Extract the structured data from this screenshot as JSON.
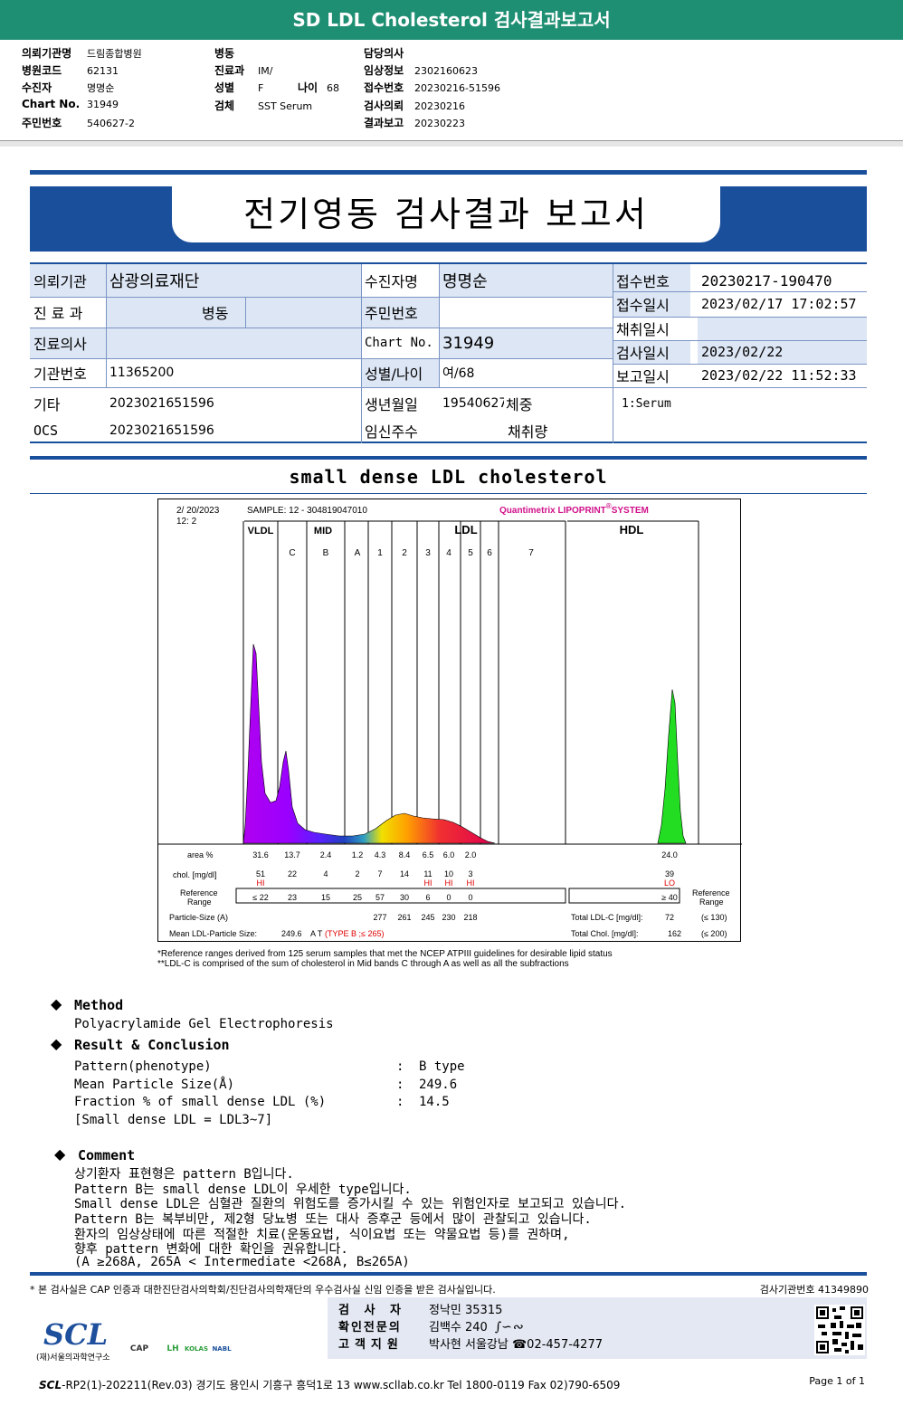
{
  "header": {
    "title": "SD LDL Cholesterol 검사결과보고서",
    "fields": [
      {
        "label": "의뢰기관명",
        "value": "드림종합병원"
      },
      {
        "label": "병원코드",
        "value": "62131"
      },
      {
        "label": "수진자",
        "value": "명명순"
      },
      {
        "label": "Chart No.",
        "value": "31949"
      },
      {
        "label": "주민번호",
        "value": "540627-2"
      },
      {
        "label": "병동",
        "value": ""
      },
      {
        "label": "진료과",
        "value": "IM/"
      },
      {
        "label": "성별",
        "value": "F"
      },
      {
        "label": "나이",
        "value": "68"
      },
      {
        "label": "검체",
        "value": "SST Serum"
      },
      {
        "label": "담당의사",
        "value": ""
      },
      {
        "label": "임상정보",
        "value": "2302160623"
      },
      {
        "label": "접수번호",
        "value": "20230216-51596"
      },
      {
        "label": "검사의뢰",
        "value": "20230216"
      },
      {
        "label": "결과보고",
        "value": "20230223"
      }
    ]
  },
  "report": {
    "title": "전기영동 검사결과 보고서",
    "table": {
      "institution_label": "의뢰기관",
      "institution": "삼광의료재단",
      "patient_label": "수진자명",
      "patient": "명명순",
      "receipt_no_label": "접수번호",
      "receipt_no": "20230217-190470",
      "dept_label": "진 료 과",
      "ward": "병동",
      "rrn_label": "주민번호",
      "rrn": "",
      "receipt_time_label": "접수일시",
      "receipt_time": "2023/02/17 17:02:57",
      "collect_time_label": "채취일시",
      "collect_time": "",
      "doctor_label": "진료의사",
      "doctor": "",
      "chart_label": "Chart No.",
      "chart": "31949",
      "test_date_label": "검사일시",
      "test_date": "2023/02/22",
      "inst_code_label": "기관번호",
      "inst_code": "11365200",
      "sex_age_label": "성별/나이",
      "sex_age": "여/68",
      "report_time_label": "보고일시",
      "report_time": "2023/02/22 11:52:33",
      "etc_label": "기타",
      "etc": "2023021651596",
      "dob_label": "생년월일",
      "dob": "19540627",
      "weight_label": "체중",
      "specimen": "1:Serum",
      "ocs_label": "OCS",
      "ocs": "2023021651596",
      "preg_label": "임신주수",
      "volume_label": "채취량"
    }
  },
  "section_title": "small dense LDL cholesterol",
  "chart_data": {
    "type": "area",
    "date_line1": "2/ 20/2023",
    "date_line2": "12:  2",
    "sample": "SAMPLE:    12 - 304819047010",
    "system": "Quantimetrix LIPOPRINT",
    "system_sup": "®",
    "system_tail": "SYSTEM",
    "groups": [
      "VLDL",
      "MID",
      "LDL",
      "HDL"
    ],
    "bands": [
      "C",
      "B",
      "A",
      "1",
      "2",
      "3",
      "4",
      "5",
      "6",
      "7"
    ],
    "row_labels": {
      "area": "area %",
      "chol": "chol. [mg/dl]",
      "ref": "Reference",
      "ref2": "Range",
      "particle": "Particle-Size (A)",
      "mean": "Mean LDL-Particle Size:"
    },
    "area_pct": [
      "31.6",
      "13.7",
      "2.4",
      "1.2",
      "4.3",
      "8.4",
      "6.5",
      "6.0",
      "2.0",
      "24.0"
    ],
    "chol": [
      "51",
      "22",
      "4",
      "2",
      "7",
      "14",
      "11",
      "10",
      "3",
      "39"
    ],
    "flags": [
      "HI",
      "",
      "",
      "",
      "",
      "",
      "HI",
      "HI",
      "HI",
      "LO"
    ],
    "ref_range": [
      "≤ 22",
      "23",
      "15",
      "25",
      "57",
      "30",
      "6",
      "0",
      "0",
      "≥ 40"
    ],
    "particle_size": [
      "277",
      "261",
      "245",
      "230",
      "218"
    ],
    "mean_size": "249.6",
    "mean_type": "A T",
    "mean_type2": "(TYPE B ;≤ 265)",
    "total_ldl_label": "Total LDL-C  [mg/dl]:",
    "total_ldl": "72",
    "total_ldl_ref": "(≤ 130)",
    "total_chol_label": "Total Chol.  [mg/dl]:",
    "total_chol": "162",
    "total_chol_ref": "(≤ 200)",
    "ref_label_right": "Reference",
    "ref_label_right2": "Range"
  },
  "footnotes": [
    "*Reference ranges derived from 125 serum samples that met the NCEP ATPIII guidelines for desirable lipid status",
    "**LDL-C is comprised of the sum of cholesterol in Mid bands C through A as well as all the subfractions"
  ],
  "method": {
    "heading": "Method",
    "text": "Polyacrylamide Gel Electrophoresis"
  },
  "result": {
    "heading": "Result & Conclusion",
    "rows": [
      {
        "label": "Pattern(phenotype)",
        "value": "B type"
      },
      {
        "label": "Mean Particle Size(Å)",
        "value": "249.6"
      },
      {
        "label": "Fraction % of small dense LDL (%)",
        "value": "14.5"
      }
    ],
    "note": "[Small dense LDL = LDL3~7]"
  },
  "comment": {
    "heading": "Comment",
    "lines": [
      "상기환자 표현형은 pattern B입니다.",
      "Pattern B는 small dense LDL이 우세한 type입니다.",
      "Small dense LDL은 심혈관 질환의 위험도를 증가시킬 수 있는 위험인자로 보고되고 있습니다.",
      "Pattern B는 복부비만, 제2형 당뇨병 또는 대사 증후군 등에서 많이 관찰되고 있습니다.",
      "환자의 임상상태에 따른 적절한 치료(운동요법, 식이요법 또는 약물요법 등)를 권하며,",
      "향후 pattern 변화에 대한 확인을 권유합니다.",
      "(A ≥268A, 265A < Intermediate <268A, B≤265A)"
    ]
  },
  "footer": {
    "note": "* 본 검사실은 CAP 인증과 대한진단검사의학회/진단검사의학재단의 우수검사실 신임 인증을 받은 검사실입니다.",
    "code": "검사기관번호  41349890",
    "examiner_label": "검 사 자",
    "examiner": "정낙민 35315",
    "specialist_label": "확인전문의",
    "specialist": "김백수 240",
    "support_label": "고객지원",
    "support": "박사현 서울강남 ☎02-457-4277",
    "logo": "SCL",
    "logo_sub": "(재)서울의과학연구소",
    "badges": [
      "CAP",
      "LH",
      "KOLAS",
      "NABL"
    ],
    "bottom_brand": "SCL",
    "bottom": "-RP2(1)-202211(Rev.03)  경기도 용인시 기흥구 흥덕1로 13  www.scllab.co.kr  Tel 1800-0119  Fax 02)790-6509",
    "page": "Page 1 of 1"
  }
}
